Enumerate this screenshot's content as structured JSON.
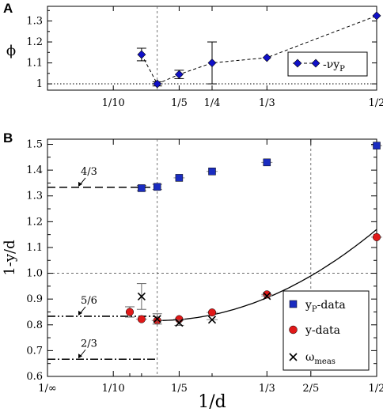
{
  "chart_data": [
    {
      "panel": "A",
      "type": "line",
      "ylabel": "ϕ",
      "ylim": [
        0.97,
        1.37
      ],
      "xlim": [
        0,
        0.5
      ],
      "x_ticks": [
        {
          "v": 0.1,
          "label": "1/10"
        },
        {
          "v": 0.2,
          "label": "1/5"
        },
        {
          "v": 0.25,
          "label": "1/4"
        },
        {
          "v": 0.3333,
          "label": "1/3"
        },
        {
          "v": 0.5,
          "label": "1/2"
        }
      ],
      "y_ticks": [
        {
          "v": 1.0,
          "label": "1"
        },
        {
          "v": 1.1,
          "label": "1.1"
        },
        {
          "v": 1.2,
          "label": "1.2"
        },
        {
          "v": 1.3,
          "label": "1.3"
        }
      ],
      "vline_x": 0.1667,
      "hline_y": 1.0,
      "legend": {
        "label": "-νy",
        "sub": "P",
        "placement": "center-right"
      },
      "series": [
        {
          "name": "-νy_P",
          "color": "#1010c8",
          "points": [
            {
              "x": 0.1429,
              "y": 1.14,
              "err": 0.03
            },
            {
              "x": 0.1667,
              "y": 1.0,
              "err": 0.01
            },
            {
              "x": 0.2,
              "y": 1.045,
              "err": 0.02
            },
            {
              "x": 0.25,
              "y": 1.1,
              "err": 0.1
            },
            {
              "x": 0.3333,
              "y": 1.125,
              "err": 0.005
            },
            {
              "x": 0.5,
              "y": 1.325,
              "err": 0.005
            }
          ]
        }
      ]
    },
    {
      "panel": "B",
      "type": "scatter",
      "ylabel": "1-y/d",
      "xlabel": "1/d",
      "ylim": [
        0.6,
        1.52
      ],
      "xlim": [
        0,
        0.5
      ],
      "x_ticks": [
        {
          "v": 0.0,
          "label": "1/∞"
        },
        {
          "v": 0.1,
          "label": "1/10"
        },
        {
          "v": 0.2,
          "label": "1/5"
        },
        {
          "v": 0.3333,
          "label": "1/3"
        },
        {
          "v": 0.4,
          "label": "2/5"
        },
        {
          "v": 0.5,
          "label": "1/2"
        }
      ],
      "y_ticks": [
        {
          "v": 0.6,
          "label": "0.6"
        },
        {
          "v": 0.7,
          "label": "0.7"
        },
        {
          "v": 0.8,
          "label": "0.8"
        },
        {
          "v": 0.9,
          "label": "0.9"
        },
        {
          "v": 1.0,
          "label": "1.0"
        },
        {
          "v": 1.1,
          "label": "1.1"
        },
        {
          "v": 1.2,
          "label": "1.2"
        },
        {
          "v": 1.3,
          "label": "1.3"
        },
        {
          "v": 1.4,
          "label": "1.4"
        },
        {
          "v": 1.5,
          "label": "1.5"
        }
      ],
      "vlines_x": [
        0.1667,
        0.4
      ],
      "hline_y": 1.0,
      "annotations": [
        {
          "text": "4/3",
          "y": 1.3333,
          "x_end": 0.1667,
          "style": "dashed"
        },
        {
          "text": "5/6",
          "y": 0.8333,
          "x_end": 0.1667,
          "style": "dash-dot-dot"
        },
        {
          "text": "2/3",
          "y": 0.6667,
          "x_end": 0.1667,
          "style": "dash-dot"
        }
      ],
      "fit_curve": {
        "x_start": 0.1667,
        "x_end": 0.5,
        "y_min": 0.8167,
        "y_at_end": 1.17
      },
      "legend": {
        "placement": "bottom-right",
        "entries": [
          {
            "label": "y",
            "sub": "P",
            "suffix": "-data",
            "marker": "square"
          },
          {
            "label": "y-data",
            "sub": "",
            "suffix": "",
            "marker": "circle"
          },
          {
            "label": "ω",
            "sub": "meas",
            "suffix": "",
            "marker": "cross"
          }
        ]
      },
      "series": [
        {
          "name": "y_P-data",
          "marker": "square",
          "color": "#1a2cc0",
          "points": [
            {
              "x": 0.1429,
              "y": 1.33,
              "err": 0.01
            },
            {
              "x": 0.1667,
              "y": 1.335,
              "err": 0.01
            },
            {
              "x": 0.2,
              "y": 1.37,
              "err": 0.005
            },
            {
              "x": 0.25,
              "y": 1.395,
              "err": 0.005
            },
            {
              "x": 0.3333,
              "y": 1.43,
              "err": 0.005
            },
            {
              "x": 0.5,
              "y": 1.495,
              "err": 0.005
            }
          ]
        },
        {
          "name": "y-data",
          "marker": "circle",
          "color": "#e01818",
          "points": [
            {
              "x": 0.125,
              "y": 0.85,
              "err": 0.02
            },
            {
              "x": 0.1429,
              "y": 0.822,
              "err": 0.005
            },
            {
              "x": 0.1667,
              "y": 0.817,
              "err": 0.005
            },
            {
              "x": 0.2,
              "y": 0.822,
              "err": 0.005
            },
            {
              "x": 0.25,
              "y": 0.848,
              "err": 0.005
            },
            {
              "x": 0.3333,
              "y": 0.918,
              "err": 0.005
            },
            {
              "x": 0.5,
              "y": 1.14,
              "err": 0.005
            }
          ]
        },
        {
          "name": "ω_meas",
          "marker": "cross",
          "color": "#000000",
          "points": [
            {
              "x": 0.1429,
              "y": 0.91,
              "err": 0.05
            },
            {
              "x": 0.1667,
              "y": 0.823,
              "err": 0.02
            },
            {
              "x": 0.2,
              "y": 0.808,
              "err": 0.01
            },
            {
              "x": 0.25,
              "y": 0.82,
              "err": 0.005
            },
            {
              "x": 0.3333,
              "y": 0.912,
              "err": 0.005
            }
          ]
        }
      ]
    }
  ]
}
